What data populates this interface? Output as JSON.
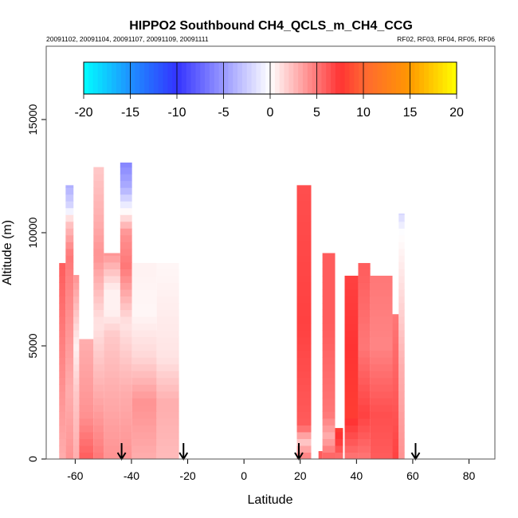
{
  "chart_data": {
    "type": "heatmap",
    "title": "HIPPO2 Southbound CH4_QCLS_m_CH4_CCG",
    "subtitle_left": "20091102, 20091104, 20091107, 20091109, 20091111",
    "subtitle_right": "RF02, RF03, RF04, RF05, RF06",
    "xlabel": "Latitude",
    "ylabel": "Altitude (m)",
    "xlim": [
      -70.3,
      89.2
    ],
    "ylim": [
      0,
      18240
    ],
    "xticks": [
      -60,
      -40,
      -20,
      0,
      20,
      40,
      60,
      80
    ],
    "xtick_labels": [
      "-60",
      "-40",
      "-20",
      "0",
      "20",
      "40",
      "60",
      "80"
    ],
    "yticks": [
      0,
      5000,
      10000,
      15000
    ],
    "ytick_labels": [
      "0",
      "5000",
      "10000",
      "15000"
    ],
    "colorbar": {
      "range": [
        -20,
        20
      ],
      "ticks": [
        -20,
        -15,
        -10,
        -5,
        0,
        5,
        10,
        15,
        20
      ],
      "tick_labels": [
        "-20",
        "-15",
        "-10",
        "-5",
        "0",
        "5",
        "10",
        "15",
        "20"
      ],
      "stops": [
        [
          -20,
          "#00ffff"
        ],
        [
          -15,
          "#1e90ff"
        ],
        [
          -10,
          "#3333ff"
        ],
        [
          -5,
          "#9999ff"
        ],
        [
          0,
          "#ffffff"
        ],
        [
          5,
          "#ff7777"
        ],
        [
          7.5,
          "#ff3333"
        ],
        [
          10,
          "#ff6633"
        ],
        [
          15,
          "#ff9900"
        ],
        [
          20,
          "#ffff00"
        ]
      ]
    },
    "profile_arrows_lat": [
      -43.5,
      -21.5,
      19.5,
      61
    ],
    "columns": [
      {
        "lat": [
          -65.7,
          -63.4
        ],
        "top": 8660,
        "profile": [
          [
            0,
            3
          ],
          [
            3000,
            4
          ],
          [
            6000,
            5
          ],
          [
            8660,
            6
          ]
        ]
      },
      {
        "lat": [
          -63.4,
          -60.6
        ],
        "top": 12100,
        "profile": [
          [
            0,
            4
          ],
          [
            3000,
            3
          ],
          [
            6000,
            4
          ],
          [
            9000,
            5
          ],
          [
            10500,
            2
          ],
          [
            11200,
            -2
          ],
          [
            12100,
            -4
          ]
        ]
      },
      {
        "lat": [
          -60.6,
          -58.6
        ],
        "top": 8130,
        "profile": [
          [
            0,
            3
          ],
          [
            3000,
            2
          ],
          [
            5000,
            0.5
          ],
          [
            8130,
            4
          ]
        ]
      },
      {
        "lat": [
          -58.6,
          -53.5
        ],
        "top": 5300,
        "profile": [
          [
            0,
            6
          ],
          [
            2000,
            4
          ],
          [
            5300,
            3
          ]
        ]
      },
      {
        "lat": [
          -53.5,
          -49.8
        ],
        "top": 12900,
        "profile": [
          [
            0,
            5
          ],
          [
            3000,
            3
          ],
          [
            6000,
            1
          ],
          [
            9000,
            4
          ],
          [
            10500,
            3
          ],
          [
            12900,
            2
          ]
        ]
      },
      {
        "lat": [
          -49.8,
          -44
        ],
        "top": 9100,
        "profile": [
          [
            0,
            4
          ],
          [
            3000,
            3
          ],
          [
            5500,
            2
          ],
          [
            6500,
            0.5
          ],
          [
            7500,
            0.5
          ],
          [
            9100,
            4
          ]
        ]
      },
      {
        "lat": [
          -44,
          -39.8
        ],
        "top": 13100,
        "profile": [
          [
            0,
            4
          ],
          [
            3000,
            3
          ],
          [
            6000,
            1
          ],
          [
            8500,
            5
          ],
          [
            10000,
            4
          ],
          [
            11000,
            0
          ],
          [
            12000,
            -4
          ],
          [
            13100,
            -6
          ]
        ]
      },
      {
        "lat": [
          -39.8,
          -31
        ],
        "top": 8660,
        "profile": [
          [
            0,
            3
          ],
          [
            2500,
            4
          ],
          [
            4500,
            1.5
          ],
          [
            6500,
            0.3
          ],
          [
            8660,
            0.5
          ]
        ]
      },
      {
        "lat": [
          -31,
          -23.1
        ],
        "top": 8660,
        "profile": [
          [
            0,
            2.5
          ],
          [
            2500,
            3
          ],
          [
            4500,
            1
          ],
          [
            8660,
            0.3
          ]
        ]
      },
      {
        "lat": [
          18.8,
          23.9
        ],
        "top": 12100,
        "profile": [
          [
            0,
            5
          ],
          [
            800,
            2
          ],
          [
            1500,
            6
          ],
          [
            6000,
            7
          ],
          [
            12100,
            6.5
          ]
        ]
      },
      {
        "lat": [
          26.5,
          27.9
        ],
        "top": 350,
        "profile": [
          [
            0,
            6
          ],
          [
            350,
            6
          ]
        ]
      },
      {
        "lat": [
          27.9,
          32.4
        ],
        "top": 9100,
        "profile": [
          [
            0,
            6
          ],
          [
            1000,
            3
          ],
          [
            2000,
            5
          ],
          [
            6000,
            6
          ],
          [
            9100,
            6
          ]
        ]
      },
      {
        "lat": [
          32.4,
          35.2
        ],
        "top": 1370,
        "profile": [
          [
            0,
            5
          ],
          [
            700,
            7
          ],
          [
            1370,
            8
          ]
        ]
      },
      {
        "lat": [
          35.8,
          40.6
        ],
        "top": 8100,
        "profile": [
          [
            0,
            5
          ],
          [
            2000,
            8
          ],
          [
            5000,
            7.5
          ],
          [
            8100,
            7
          ]
        ]
      },
      {
        "lat": [
          40.6,
          44.9
        ],
        "top": 8660,
        "profile": [
          [
            0,
            5
          ],
          [
            2000,
            7
          ],
          [
            5000,
            5
          ],
          [
            8660,
            6
          ]
        ]
      },
      {
        "lat": [
          44.9,
          52.8
        ],
        "top": 8100,
        "profile": [
          [
            0,
            6
          ],
          [
            2000,
            6.5
          ],
          [
            5000,
            4.5
          ],
          [
            8100,
            5
          ]
        ]
      },
      {
        "lat": [
          52.8,
          55
        ],
        "top": 6400,
        "profile": [
          [
            0,
            7
          ],
          [
            3000,
            6
          ],
          [
            6400,
            5
          ]
        ]
      },
      {
        "lat": [
          55,
          57.1
        ],
        "top": 10850,
        "profile": [
          [
            0,
            4
          ],
          [
            4000,
            3
          ],
          [
            8000,
            1
          ],
          [
            10000,
            0
          ],
          [
            10850,
            -2
          ]
        ]
      }
    ]
  }
}
